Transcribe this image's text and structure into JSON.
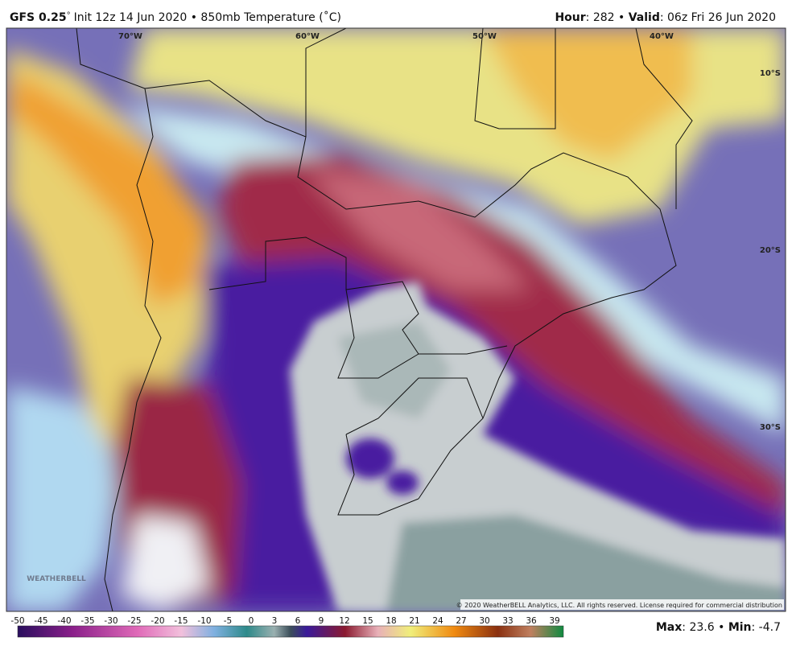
{
  "header": {
    "model": "GFS 0.25",
    "degree": "°",
    "init": "Init 12z 14 Jun 2020",
    "sep": "•",
    "field": "850mb Temperature (˚C)",
    "hour_label": "Hour",
    "hour_value": ": 282",
    "sep2": "•",
    "valid_label": "Valid",
    "valid_value": ": 06z Fri 26 Jun 2020"
  },
  "map": {
    "lon_labels": [
      "70°W",
      "60°W",
      "50°W",
      "40°W"
    ],
    "lat_labels": [
      "10°S",
      "20°S",
      "30°S"
    ],
    "logo": "WEATHERBELL",
    "copyright": "© 2020 WeatherBELL Analytics, LLC. All rights reserved. License required for commercial distribution"
  },
  "colorbar": {
    "ticks": [
      -50,
      -45,
      -40,
      -35,
      -30,
      -25,
      -20,
      -15,
      -10,
      -5,
      0,
      3,
      6,
      9,
      12,
      15,
      18,
      21,
      24,
      27,
      30,
      33,
      36,
      39
    ]
  },
  "footer": {
    "max_label": "Max",
    "max_value": ": 23.6",
    "sep": "•",
    "min_label": "Min",
    "min_value": ": -4.7"
  }
}
